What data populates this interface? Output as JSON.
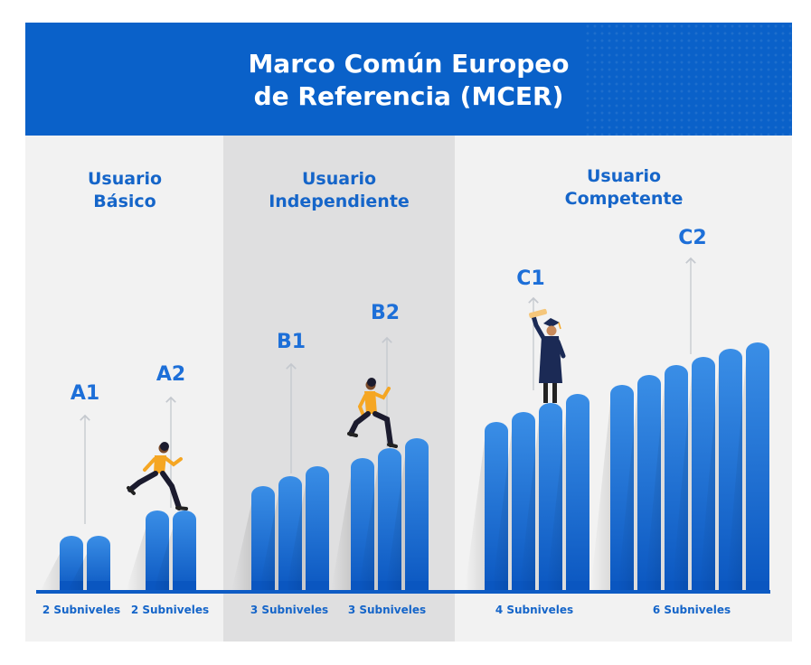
{
  "header": {
    "title_line1": "Marco Común Europeo",
    "title_line2": "de Referencia (MCER)"
  },
  "groups": [
    {
      "line1": "Usuario",
      "line2": "Básico"
    },
    {
      "line1": "Usuario",
      "line2": "Independiente"
    },
    {
      "line1": "Usuario",
      "line2": "Competente"
    }
  ],
  "levels": [
    {
      "label": "A1",
      "sublevels": 2,
      "sublevels_label": "2 Subniveles"
    },
    {
      "label": "A2",
      "sublevels": 2,
      "sublevels_label": "2 Subniveles"
    },
    {
      "label": "B1",
      "sublevels": 3,
      "sublevels_label": "3 Subniveles"
    },
    {
      "label": "B2",
      "sublevels": 3,
      "sublevels_label": "3 Subniveles"
    },
    {
      "label": "C1",
      "sublevels": 4,
      "sublevels_label": "4 Subniveles"
    },
    {
      "label": "C2",
      "sublevels": 6,
      "sublevels_label": "6 Subniveles"
    }
  ],
  "colors": {
    "header_bg": "#0a61c9",
    "bar_light": "#3a8ee6",
    "bar_dark": "#0a56c0",
    "text_blue": "#1565c9",
    "baseline": "#0d5bc4"
  },
  "figures": [
    "running-person-icon",
    "running-person-icon",
    "graduate-icon"
  ]
}
